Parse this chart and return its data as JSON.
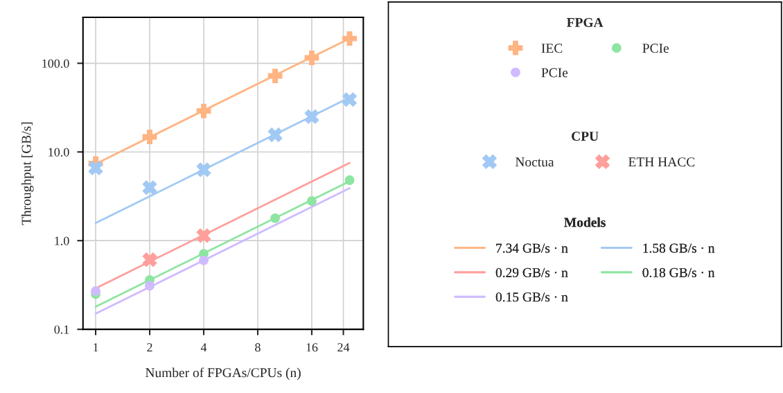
{
  "chart_data": {
    "type": "scatter",
    "xlabel": "Number of FPGAs/CPUs (n)",
    "ylabel": "Throughput [GB/s]",
    "log": "xy",
    "grid": true,
    "legend": "right",
    "legend_title": [
      "FPGA",
      "CPU",
      "Models"
    ],
    "xlim": [
      0.85,
      31
    ],
    "xticks": [
      1,
      2,
      4,
      8,
      16,
      24
    ],
    "ylim": [
      0.1,
      330
    ],
    "yticks": [
      0.1,
      {
        "value": 1,
        "label": "1.0"
      },
      {
        "value": 10,
        "label": "10.0"
      },
      {
        "value": 100,
        "label": "100.0"
      }
    ],
    "series": [
      {
        "name": "IEC",
        "marker": "plus",
        "color": "#ffb482",
        "x": [
          1,
          2,
          4,
          10,
          16,
          26
        ],
        "values": [
          7.4,
          14.8,
          29,
          72,
          115,
          190
        ]
      },
      {
        "name": "PCIe",
        "marker": "circle",
        "color": "#8de5a1",
        "x": [
          1,
          2,
          4,
          10,
          16,
          26
        ],
        "values": [
          0.25,
          0.36,
          0.71,
          1.79,
          2.8,
          4.8
        ]
      },
      {
        "name": "PCIe",
        "marker": "circle",
        "color": "#d0bbff",
        "x": [
          1,
          2,
          4
        ],
        "values": [
          0.27,
          0.31,
          0.6
        ]
      },
      {
        "name": "Noctua",
        "marker": "cross",
        "color": "#a1c9f4",
        "x": [
          1,
          2,
          4,
          10,
          16,
          26
        ],
        "values": [
          6.6,
          3.96,
          6.3,
          15.6,
          25,
          39
        ]
      },
      {
        "name": "ETH HACC",
        "marker": "cross",
        "color": "#ff9f9b",
        "x": [
          2,
          4
        ],
        "values": [
          0.61,
          1.14
        ]
      },
      {
        "name": "7.34 GB/s · n",
        "type": "line",
        "line_style": "solid",
        "color": "#ffb482",
        "x": [
          1,
          26
        ],
        "values": [
          7.34,
          190.8
        ]
      },
      {
        "name": "1.58 GB/s · n",
        "type": "line",
        "line_style": "solid",
        "color": "#a1c9f4",
        "x": [
          1,
          26
        ],
        "values": [
          1.58,
          41.1
        ]
      },
      {
        "name": "0.29 GB/s · n",
        "type": "line",
        "line_style": "solid",
        "color": "#ff9f9b",
        "x": [
          1,
          26
        ],
        "values": [
          0.29,
          7.54
        ]
      },
      {
        "name": "0.18 GB/s · n",
        "type": "line",
        "line_style": "solid",
        "color": "#8de5a1",
        "x": [
          1,
          26
        ],
        "values": [
          0.18,
          4.68
        ]
      },
      {
        "name": "0.15 GB/s · n",
        "type": "line",
        "line_style": "solid",
        "color": "#d0bbff",
        "x": [
          1,
          26
        ],
        "values": [
          0.15,
          3.9
        ]
      }
    ]
  }
}
